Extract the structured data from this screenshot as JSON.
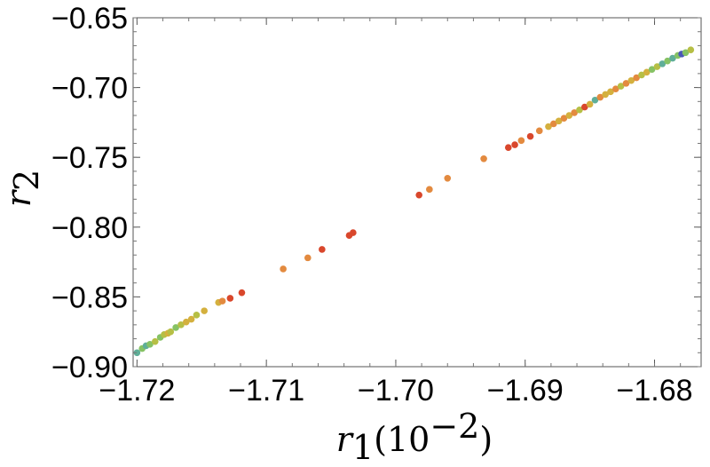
{
  "chart_data": {
    "type": "scatter",
    "title": "",
    "xlabel": {
      "var": "r",
      "sub": "1",
      "unit_base": "(10",
      "unit_exp": "−2",
      "unit_close": ")"
    },
    "ylabel": {
      "var": "r",
      "sub": "2"
    },
    "xlim": [
      -1.7203,
      -1.6764
    ],
    "ylim": [
      -0.9,
      -0.65
    ],
    "x_ticks": [
      {
        "value": -1.72,
        "label": "−1.72"
      },
      {
        "value": -1.71,
        "label": "−1.71"
      },
      {
        "value": -1.7,
        "label": "−1.70"
      },
      {
        "value": -1.69,
        "label": "−1.69"
      },
      {
        "value": -1.68,
        "label": "−1.68"
      }
    ],
    "y_ticks": [
      {
        "value": -0.9,
        "label": "−0.90"
      },
      {
        "value": -0.85,
        "label": "−0.85"
      },
      {
        "value": -0.8,
        "label": "−0.80"
      },
      {
        "value": -0.75,
        "label": "−0.75"
      },
      {
        "value": -0.7,
        "label": "−0.70"
      },
      {
        "value": -0.65,
        "label": "−0.65"
      }
    ],
    "grid": false,
    "legend": "none",
    "colors": {
      "blue": "#4a57b8",
      "teal": "#5fae98",
      "green": "#86c264",
      "yellowgreen": "#b6bf45",
      "yellow": "#d4b03e",
      "orange": "#e38a3f",
      "red": "#d9472c"
    },
    "points": [
      {
        "x": -1.72,
        "y": -0.89,
        "c": "teal"
      },
      {
        "x": -1.7196,
        "y": -0.887,
        "c": "green"
      },
      {
        "x": -1.7193,
        "y": -0.885,
        "c": "teal"
      },
      {
        "x": -1.719,
        "y": -0.884,
        "c": "green"
      },
      {
        "x": -1.7186,
        "y": -0.882,
        "c": "yellowgreen"
      },
      {
        "x": -1.7182,
        "y": -0.879,
        "c": "green"
      },
      {
        "x": -1.7179,
        "y": -0.877,
        "c": "yellowgreen"
      },
      {
        "x": -1.7176,
        "y": -0.876,
        "c": "yellow"
      },
      {
        "x": -1.7174,
        "y": -0.875,
        "c": "yellowgreen"
      },
      {
        "x": -1.717,
        "y": -0.872,
        "c": "green"
      },
      {
        "x": -1.7166,
        "y": -0.87,
        "c": "yellowgreen"
      },
      {
        "x": -1.7162,
        "y": -0.868,
        "c": "yellow"
      },
      {
        "x": -1.7158,
        "y": -0.866,
        "c": "yellow"
      },
      {
        "x": -1.7154,
        "y": -0.863,
        "c": "yellowgreen"
      },
      {
        "x": -1.7148,
        "y": -0.86,
        "c": "yellow"
      },
      {
        "x": -1.7137,
        "y": -0.854,
        "c": "yellow"
      },
      {
        "x": -1.7134,
        "y": -0.853,
        "c": "orange"
      },
      {
        "x": -1.7128,
        "y": -0.851,
        "c": "red"
      },
      {
        "x": -1.7119,
        "y": -0.847,
        "c": "red"
      },
      {
        "x": -1.7087,
        "y": -0.83,
        "c": "orange"
      },
      {
        "x": -1.7068,
        "y": -0.822,
        "c": "orange"
      },
      {
        "x": -1.7057,
        "y": -0.816,
        "c": "red"
      },
      {
        "x": -1.7036,
        "y": -0.806,
        "c": "red"
      },
      {
        "x": -1.7033,
        "y": -0.804,
        "c": "red"
      },
      {
        "x": -1.6982,
        "y": -0.777,
        "c": "red"
      },
      {
        "x": -1.6974,
        "y": -0.773,
        "c": "orange"
      },
      {
        "x": -1.696,
        "y": -0.765,
        "c": "orange"
      },
      {
        "x": -1.6932,
        "y": -0.751,
        "c": "orange"
      },
      {
        "x": -1.6913,
        "y": -0.743,
        "c": "red"
      },
      {
        "x": -1.6908,
        "y": -0.741,
        "c": "red"
      },
      {
        "x": -1.6903,
        "y": -0.738,
        "c": "orange"
      },
      {
        "x": -1.6896,
        "y": -0.735,
        "c": "red"
      },
      {
        "x": -1.6889,
        "y": -0.731,
        "c": "orange"
      },
      {
        "x": -1.6882,
        "y": -0.728,
        "c": "yellow"
      },
      {
        "x": -1.6878,
        "y": -0.726,
        "c": "orange"
      },
      {
        "x": -1.6874,
        "y": -0.724,
        "c": "yellow"
      },
      {
        "x": -1.687,
        "y": -0.722,
        "c": "orange"
      },
      {
        "x": -1.6866,
        "y": -0.72,
        "c": "yellow"
      },
      {
        "x": -1.6862,
        "y": -0.718,
        "c": "orange"
      },
      {
        "x": -1.6858,
        "y": -0.716,
        "c": "yellowgreen"
      },
      {
        "x": -1.6854,
        "y": -0.714,
        "c": "red"
      },
      {
        "x": -1.685,
        "y": -0.712,
        "c": "yellow"
      },
      {
        "x": -1.6846,
        "y": -0.709,
        "c": "teal"
      },
      {
        "x": -1.6842,
        "y": -0.707,
        "c": "orange"
      },
      {
        "x": -1.6838,
        "y": -0.705,
        "c": "yellow"
      },
      {
        "x": -1.6834,
        "y": -0.703,
        "c": "yellow"
      },
      {
        "x": -1.683,
        "y": -0.701,
        "c": "orange"
      },
      {
        "x": -1.6826,
        "y": -0.699,
        "c": "yellowgreen"
      },
      {
        "x": -1.6822,
        "y": -0.697,
        "c": "orange"
      },
      {
        "x": -1.6818,
        "y": -0.695,
        "c": "yellow"
      },
      {
        "x": -1.6814,
        "y": -0.693,
        "c": "orange"
      },
      {
        "x": -1.681,
        "y": -0.691,
        "c": "yellowgreen"
      },
      {
        "x": -1.6806,
        "y": -0.689,
        "c": "yellow"
      },
      {
        "x": -1.6802,
        "y": -0.687,
        "c": "green"
      },
      {
        "x": -1.6798,
        "y": -0.685,
        "c": "yellowgreen"
      },
      {
        "x": -1.6794,
        "y": -0.683,
        "c": "teal"
      },
      {
        "x": -1.679,
        "y": -0.681,
        "c": "green"
      },
      {
        "x": -1.6786,
        "y": -0.679,
        "c": "teal"
      },
      {
        "x": -1.6782,
        "y": -0.677,
        "c": "green"
      },
      {
        "x": -1.6779,
        "y": -0.676,
        "c": "blue"
      },
      {
        "x": -1.6776,
        "y": -0.675,
        "c": "green"
      },
      {
        "x": -1.6772,
        "y": -0.673,
        "c": "yellowgreen"
      }
    ]
  }
}
